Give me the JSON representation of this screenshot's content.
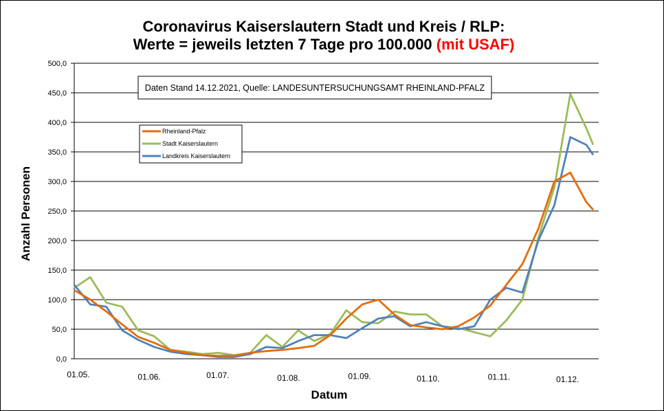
{
  "chart_data": {
    "type": "line",
    "title_line1": "Coronavirus Kaiserslautern Stadt und Kreis / RLP:",
    "title_line2": "Werte = jeweils letzten 7 Tage pro 100.000 ",
    "title_highlight": "(mit USAF)",
    "title_highlight_color": "#ff0000",
    "annotation": "Daten Stand 14.12.2021, Quelle: LANDESUNTERSUCHUNGSAMT RHEINLAND-PFALZ",
    "xlabel": "Datum",
    "ylabel": "Anzahl Personen",
    "ylim": [
      0,
      500
    ],
    "yticks": [
      "0,0",
      "50,0",
      "100,0",
      "150,0",
      "200,0",
      "250,0",
      "300,0",
      "350,0",
      "400,0",
      "450,0",
      "500,0"
    ],
    "xticks": [
      "01.05.",
      "01.06.",
      "01.07.",
      "01.08.",
      "01.09.",
      "01.10.",
      "01.11.",
      "01.12."
    ],
    "xlim": [
      "01.05.",
      "14.12."
    ],
    "grid": "horizontal",
    "legend_position": "top-left",
    "x": [
      "01.05.",
      "08.05.",
      "15.05.",
      "22.05.",
      "29.05.",
      "05.06.",
      "12.06.",
      "19.06.",
      "26.06.",
      "03.07.",
      "10.07.",
      "17.07.",
      "24.07.",
      "31.07.",
      "07.08.",
      "14.08.",
      "21.08.",
      "28.08.",
      "04.09.",
      "11.09.",
      "18.09.",
      "25.09.",
      "02.10.",
      "09.10.",
      "16.10.",
      "23.10.",
      "30.10.",
      "06.11.",
      "13.11.",
      "20.11.",
      "27.11.",
      "04.12.",
      "11.12.",
      "14.12."
    ],
    "series": [
      {
        "name": "Rheinland-Pfalz",
        "color": "#e46c0a",
        "values": [
          116,
          100,
          80,
          58,
          37,
          27,
          15,
          10,
          6,
          5,
          5,
          10,
          13,
          15,
          18,
          22,
          40,
          68,
          92,
          100,
          75,
          57,
          53,
          50,
          55,
          70,
          90,
          125,
          160,
          220,
          300,
          315,
          265,
          252
        ]
      },
      {
        "name": "Stadt Kaiserslautern",
        "color": "#9bbb59",
        "values": [
          120,
          138,
          95,
          88,
          48,
          38,
          15,
          12,
          8,
          10,
          6,
          10,
          40,
          20,
          48,
          30,
          42,
          82,
          62,
          60,
          80,
          75,
          75,
          55,
          52,
          45,
          38,
          65,
          100,
          205,
          290,
          448,
          390,
          362
        ]
      },
      {
        "name": "Landkreis Kaiserslautern",
        "color": "#4f81bd",
        "values": [
          125,
          92,
          88,
          48,
          32,
          20,
          12,
          8,
          6,
          3,
          3,
          8,
          20,
          18,
          30,
          40,
          40,
          35,
          52,
          68,
          72,
          55,
          62,
          55,
          50,
          55,
          100,
          120,
          112,
          200,
          260,
          375,
          362,
          345
        ]
      }
    ]
  }
}
